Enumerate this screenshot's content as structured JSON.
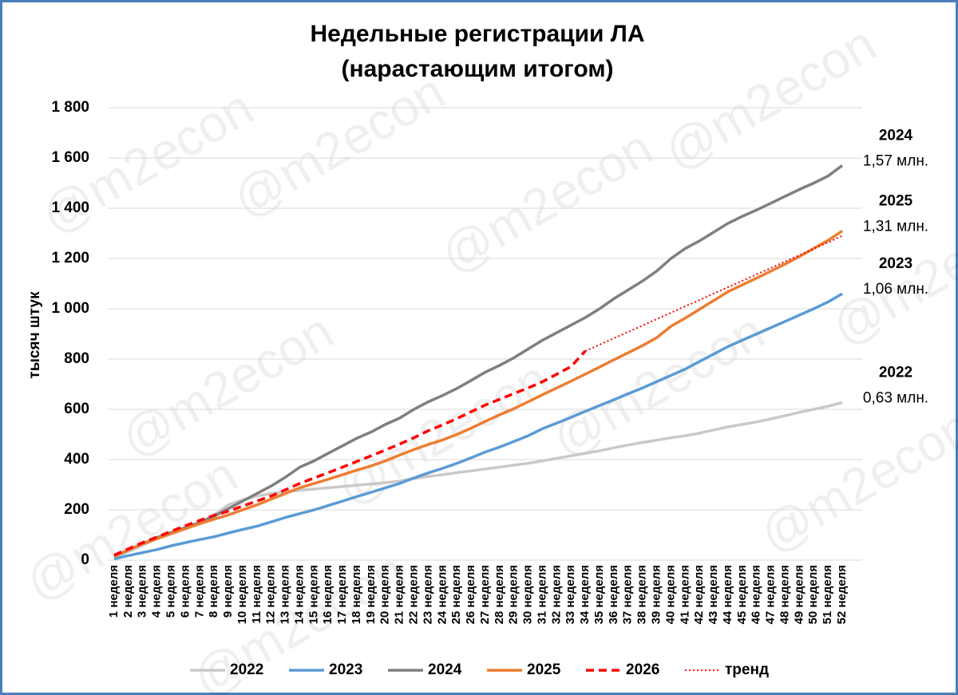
{
  "chart_data": {
    "type": "line",
    "title": "Недельные регистрации ЛА",
    "subtitle": "(нарастающим итогом)",
    "y_label": "тысяч штук",
    "watermark": "@m2econ",
    "categories": [
      "1 неделя",
      "2 неделя",
      "3 неделя",
      "4 неделя",
      "5 неделя",
      "6 неделя",
      "7 неделя",
      "8 неделя",
      "9 неделя",
      "10 неделя",
      "11 неделя",
      "12 неделя",
      "13 неделя",
      "14 неделя",
      "15 неделя",
      "16 неделя",
      "17 неделя",
      "18 неделя",
      "19 неделя",
      "20 неделя",
      "21 неделя",
      "22 неделя",
      "23 неделя",
      "24 неделя",
      "25 неделя",
      "26 неделя",
      "27 неделя",
      "28 неделя",
      "29 неделя",
      "30 неделя",
      "31 неделя",
      "32 неделя",
      "33 неделя",
      "34 неделя",
      "35 неделя",
      "36 неделя",
      "37 неделя",
      "38 неделя",
      "39 неделя",
      "40 неделя",
      "41 неделя",
      "42 неделя",
      "43 неделя",
      "44 неделя",
      "45 неделя",
      "46 неделя",
      "47 неделя",
      "48 неделя",
      "49 неделя",
      "50 неделя",
      "51 неделя",
      "52 неделя"
    ],
    "series": [
      {
        "name": "2022",
        "color": "#c9c9c9",
        "dash": "solid",
        "values": [
          10,
          35,
          60,
          85,
          110,
          130,
          150,
          180,
          220,
          240,
          255,
          265,
          272,
          278,
          283,
          288,
          293,
          298,
          303,
          308,
          315,
          325,
          333,
          340,
          348,
          355,
          363,
          370,
          378,
          385,
          395,
          405,
          415,
          425,
          435,
          447,
          458,
          468,
          477,
          487,
          495,
          505,
          518,
          530,
          540,
          550,
          562,
          575,
          588,
          600,
          612,
          627
        ]
      },
      {
        "name": "2023",
        "color": "#5b9bd5",
        "dash": "solid",
        "values": [
          5,
          18,
          30,
          42,
          57,
          70,
          82,
          93,
          108,
          122,
          135,
          152,
          170,
          185,
          200,
          217,
          235,
          253,
          270,
          288,
          305,
          327,
          347,
          365,
          385,
          407,
          430,
          450,
          472,
          495,
          523,
          545,
          568,
          592,
          615,
          638,
          662,
          685,
          710,
          735,
          760,
          790,
          820,
          850,
          875,
          900,
          925,
          950,
          975,
          1000,
          1027,
          1060
        ]
      },
      {
        "name": "2024",
        "color": "#7f7f7f",
        "dash": "solid",
        "values": [
          15,
          40,
          65,
          90,
          110,
          130,
          150,
          175,
          205,
          235,
          265,
          295,
          330,
          370,
          395,
          425,
          455,
          485,
          510,
          540,
          565,
          600,
          630,
          655,
          683,
          715,
          748,
          775,
          805,
          840,
          875,
          905,
          935,
          965,
          1000,
          1040,
          1075,
          1110,
          1150,
          1200,
          1240,
          1270,
          1305,
          1340,
          1368,
          1393,
          1420,
          1448,
          1475,
          1500,
          1528,
          1570
        ]
      },
      {
        "name": "2025",
        "color": "#ed7d31",
        "dash": "solid",
        "values": [
          15,
          40,
          65,
          85,
          105,
          125,
          145,
          163,
          180,
          200,
          220,
          243,
          265,
          288,
          305,
          322,
          340,
          358,
          375,
          395,
          418,
          440,
          460,
          478,
          500,
          525,
          552,
          578,
          603,
          630,
          658,
          685,
          712,
          740,
          768,
          797,
          825,
          853,
          885,
          930,
          963,
          998,
          1033,
          1068,
          1095,
          1122,
          1150,
          1178,
          1208,
          1240,
          1272,
          1310
        ]
      },
      {
        "name": "2026",
        "color": "#ff0000",
        "dash": "dashed",
        "values": [
          20,
          45,
          70,
          92,
          115,
          137,
          158,
          178,
          195,
          215,
          235,
          255,
          280,
          305,
          327,
          348,
          370,
          393,
          415,
          438,
          462,
          487,
          515,
          538,
          563,
          590,
          617,
          640,
          663,
          685,
          710,
          740,
          770,
          832,
          null,
          null,
          null,
          null,
          null,
          null,
          null,
          null,
          null,
          null,
          null,
          null,
          null,
          null,
          null,
          null,
          null,
          null
        ]
      },
      {
        "name": "тренд",
        "color": "#ff0000",
        "dash": "dotted",
        "values": [
          null,
          null,
          null,
          null,
          null,
          null,
          null,
          null,
          null,
          null,
          null,
          null,
          null,
          null,
          null,
          null,
          null,
          null,
          null,
          null,
          null,
          null,
          null,
          null,
          null,
          null,
          null,
          null,
          null,
          null,
          null,
          null,
          null,
          832,
          857,
          883,
          908,
          933,
          959,
          984,
          1010,
          1035,
          1061,
          1086,
          1111,
          1137,
          1162,
          1188,
          1213,
          1239,
          1264,
          1290
        ]
      }
    ],
    "annotations": [
      {
        "series": 2,
        "year": "2024",
        "label": "1,57 млн."
      },
      {
        "series": 3,
        "year": "2025",
        "label": "1,31 млн."
      },
      {
        "series": 1,
        "year": "2023",
        "label": "1,06 млн."
      },
      {
        "series": 0,
        "year": "2022",
        "label": "0,63 млн."
      }
    ],
    "ylim": [
      0,
      1800
    ],
    "yticks": [
      0,
      200,
      400,
      600,
      800,
      {
        "value": 1000,
        "label": "1 000"
      },
      {
        "value": 1200,
        "label": "1 200"
      },
      {
        "value": 1400,
        "label": "1 400"
      },
      {
        "value": 1600,
        "label": "1 600"
      },
      {
        "value": 1800,
        "label": "1 800"
      }
    ],
    "grid": true,
    "legend": "bottom"
  }
}
